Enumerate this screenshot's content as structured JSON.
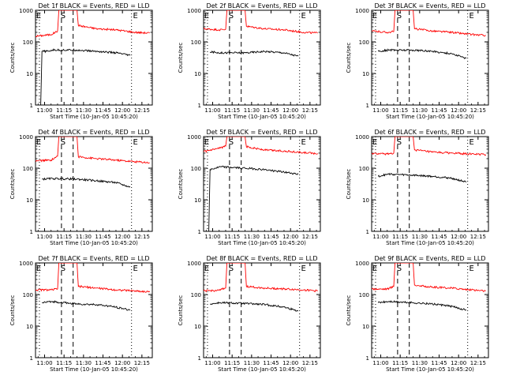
{
  "page": {
    "background": "#ffffff"
  },
  "colors": {
    "events": "#000000",
    "lld": "#ff0000",
    "axis": "#000000"
  },
  "shared": {
    "xlabel": "Start Time (10-Jan-05 10:45:20)",
    "ylabel": "Counts/sec",
    "x_tick_labels": [
      "11:00",
      "11:15",
      "11:30",
      "11:45",
      "12:00",
      "12:15"
    ],
    "y_tick_labels": [
      "1",
      "10",
      "100",
      "1000"
    ],
    "markers": {
      "eclipse_start": "E",
      "saa": "S",
      "eclipse_end": "E"
    }
  },
  "chart_data": [
    {
      "type": "line",
      "title": "Det 1f BLACK = Events, RED = LLD",
      "x_unit": "time of day (10-Jan-05)",
      "xlim": [
        "10:53",
        "12:23"
      ],
      "yscale": "log",
      "ylim": [
        1,
        1000
      ],
      "grid": false,
      "event_lines": {
        "eclipse_start": "10:56",
        "saa_start": "11:13",
        "saa_end": "11:22",
        "eclipse_end": "12:07"
      },
      "series": [
        {
          "name": "LLD",
          "color": "#ff0000",
          "points": [
            [
              "10:53",
              150
            ],
            [
              "11:05",
              170
            ],
            [
              "11:10",
              220
            ],
            [
              "11:11",
              1000
            ],
            [
              "11:25",
              1000
            ],
            [
              "11:26",
              330
            ],
            [
              "11:40",
              260
            ],
            [
              "11:55",
              240
            ],
            [
              "12:10",
              200
            ],
            [
              "12:21",
              190
            ]
          ]
        },
        {
          "name": "Events",
          "color": "#000000",
          "points": [
            [
              "10:57",
              1
            ],
            [
              "10:58",
              50
            ],
            [
              "11:03",
              50
            ],
            [
              "11:06",
              55
            ],
            [
              "11:25",
              55
            ],
            [
              "11:40",
              50
            ],
            [
              "11:55",
              45
            ],
            [
              "12:06",
              37
            ]
          ]
        }
      ]
    },
    {
      "type": "line",
      "title": "Det 2f BLACK = Events, RED = LLD",
      "x_unit": "time of day (10-Jan-05)",
      "xlim": [
        "10:53",
        "12:23"
      ],
      "yscale": "log",
      "ylim": [
        1,
        1000
      ],
      "grid": false,
      "event_lines": {
        "eclipse_start": "10:56",
        "saa_start": "11:13",
        "saa_end": "11:22",
        "eclipse_end": "12:07"
      },
      "series": [
        {
          "name": "LLD",
          "color": "#ff0000",
          "points": [
            [
              "10:53",
              260
            ],
            [
              "11:05",
              240
            ],
            [
              "11:10",
              250
            ],
            [
              "11:11",
              1000
            ],
            [
              "11:25",
              1000
            ],
            [
              "11:26",
              310
            ],
            [
              "11:40",
              260
            ],
            [
              "11:55",
              240
            ],
            [
              "12:10",
              200
            ],
            [
              "12:21",
              190
            ]
          ]
        },
        {
          "name": "Events",
          "color": "#000000",
          "points": [
            [
              "10:58",
              48
            ],
            [
              "11:06",
              45
            ],
            [
              "11:25",
              45
            ],
            [
              "11:40",
              50
            ],
            [
              "11:55",
              45
            ],
            [
              "12:06",
              35
            ]
          ]
        }
      ]
    },
    {
      "type": "line",
      "title": "Det 3f BLACK = Events, RED = LLD",
      "x_unit": "time of day (10-Jan-05)",
      "xlim": [
        "10:53",
        "12:23"
      ],
      "yscale": "log",
      "ylim": [
        1,
        1000
      ],
      "grid": false,
      "event_lines": {
        "eclipse_start": "10:56",
        "saa_start": "11:13",
        "saa_end": "11:22",
        "eclipse_end": "12:07"
      },
      "series": [
        {
          "name": "LLD",
          "color": "#ff0000",
          "points": [
            [
              "10:53",
              220
            ],
            [
              "11:05",
              200
            ],
            [
              "11:10",
              210
            ],
            [
              "11:11",
              1000
            ],
            [
              "11:25",
              1000
            ],
            [
              "11:26",
              260
            ],
            [
              "11:40",
              220
            ],
            [
              "11:55",
              200
            ],
            [
              "12:10",
              170
            ],
            [
              "12:21",
              160
            ]
          ]
        },
        {
          "name": "Events",
          "color": "#000000",
          "points": [
            [
              "10:58",
              50
            ],
            [
              "11:06",
              55
            ],
            [
              "11:25",
              55
            ],
            [
              "11:40",
              50
            ],
            [
              "11:55",
              42
            ],
            [
              "12:06",
              30
            ]
          ]
        }
      ]
    },
    {
      "type": "line",
      "title": "Det 4f BLACK = Events, RED = LLD",
      "x_unit": "time of day (10-Jan-05)",
      "xlim": [
        "10:53",
        "12:23"
      ],
      "yscale": "log",
      "ylim": [
        1,
        1000
      ],
      "grid": false,
      "event_lines": {
        "eclipse_start": "10:56",
        "saa_start": "11:13",
        "saa_end": "11:22",
        "eclipse_end": "12:07"
      },
      "series": [
        {
          "name": "LLD",
          "color": "#ff0000",
          "points": [
            [
              "10:53",
              170
            ],
            [
              "11:05",
              180
            ],
            [
              "11:10",
              240
            ],
            [
              "11:11",
              1000
            ],
            [
              "11:25",
              1000
            ],
            [
              "11:26",
              230
            ],
            [
              "11:40",
              200
            ],
            [
              "11:55",
              180
            ],
            [
              "12:10",
              160
            ],
            [
              "12:21",
              150
            ]
          ]
        },
        {
          "name": "Events",
          "color": "#000000",
          "points": [
            [
              "10:58",
              45
            ],
            [
              "11:06",
              47
            ],
            [
              "11:25",
              45
            ],
            [
              "11:40",
              40
            ],
            [
              "11:55",
              35
            ],
            [
              "12:06",
              25
            ]
          ]
        }
      ]
    },
    {
      "type": "line",
      "title": "Det 5f BLACK = Events, RED = LLD",
      "x_unit": "time of day (10-Jan-05)",
      "xlim": [
        "10:53",
        "12:23"
      ],
      "yscale": "log",
      "ylim": [
        1,
        1000
      ],
      "grid": false,
      "event_lines": {
        "eclipse_start": "10:56",
        "saa_start": "11:13",
        "saa_end": "11:22",
        "eclipse_end": "12:07"
      },
      "series": [
        {
          "name": "LLD",
          "color": "#ff0000",
          "points": [
            [
              "10:53",
              330
            ],
            [
              "11:05",
              420
            ],
            [
              "11:10",
              500
            ],
            [
              "11:11",
              1000
            ],
            [
              "11:25",
              1000
            ],
            [
              "11:26",
              480
            ],
            [
              "11:40",
              380
            ],
            [
              "11:55",
              350
            ],
            [
              "12:10",
              310
            ],
            [
              "12:21",
              290
            ]
          ]
        },
        {
          "name": "Events",
          "color": "#000000",
          "points": [
            [
              "10:57",
              1
            ],
            [
              "10:58",
              90
            ],
            [
              "11:06",
              110
            ],
            [
              "11:25",
              100
            ],
            [
              "11:40",
              90
            ],
            [
              "11:55",
              75
            ],
            [
              "12:06",
              65
            ]
          ]
        }
      ]
    },
    {
      "type": "line",
      "title": "Det 6f BLACK = Events, RED = LLD",
      "x_unit": "time of day (10-Jan-05)",
      "xlim": [
        "10:53",
        "12:23"
      ],
      "yscale": "log",
      "ylim": [
        1,
        1000
      ],
      "grid": false,
      "event_lines": {
        "eclipse_start": "10:56",
        "saa_start": "11:13",
        "saa_end": "11:22",
        "eclipse_end": "12:07"
      },
      "series": [
        {
          "name": "LLD",
          "color": "#ff0000",
          "points": [
            [
              "10:53",
              290
            ],
            [
              "11:05",
              280
            ],
            [
              "11:10",
              300
            ],
            [
              "11:11",
              1000
            ],
            [
              "11:25",
              1000
            ],
            [
              "11:26",
              380
            ],
            [
              "11:40",
              320
            ],
            [
              "11:55",
              300
            ],
            [
              "12:10",
              280
            ],
            [
              "12:21",
              270
            ]
          ]
        },
        {
          "name": "Events",
          "color": "#000000",
          "points": [
            [
              "10:58",
              55
            ],
            [
              "11:06",
              65
            ],
            [
              "11:25",
              60
            ],
            [
              "11:40",
              55
            ],
            [
              "11:55",
              48
            ],
            [
              "12:06",
              36
            ]
          ]
        }
      ]
    },
    {
      "type": "line",
      "title": "Det 7f BLACK = Events, RED = LLD",
      "x_unit": "time of day (10-Jan-05)",
      "xlim": [
        "10:53",
        "12:23"
      ],
      "yscale": "log",
      "ylim": [
        1,
        1000
      ],
      "grid": false,
      "event_lines": {
        "eclipse_start": "10:56",
        "saa_start": "11:13",
        "saa_end": "11:22",
        "eclipse_end": "12:07"
      },
      "series": [
        {
          "name": "LLD",
          "color": "#ff0000",
          "points": [
            [
              "10:53",
              140
            ],
            [
              "11:05",
              140
            ],
            [
              "11:10",
              150
            ],
            [
              "11:11",
              1000
            ],
            [
              "11:25",
              1000
            ],
            [
              "11:26",
              180
            ],
            [
              "11:40",
              160
            ],
            [
              "11:55",
              140
            ],
            [
              "12:10",
              130
            ],
            [
              "12:21",
              120
            ]
          ]
        },
        {
          "name": "Events",
          "color": "#000000",
          "points": [
            [
              "10:58",
              55
            ],
            [
              "11:06",
              60
            ],
            [
              "11:25",
              50
            ],
            [
              "11:40",
              48
            ],
            [
              "11:55",
              40
            ],
            [
              "12:06",
              32
            ]
          ]
        }
      ]
    },
    {
      "type": "line",
      "title": "Det 8f BLACK = Events, RED = LLD",
      "x_unit": "time of day (10-Jan-05)",
      "xlim": [
        "10:53",
        "12:23"
      ],
      "yscale": "log",
      "ylim": [
        1,
        1000
      ],
      "grid": false,
      "event_lines": {
        "eclipse_start": "10:56",
        "saa_start": "11:13",
        "saa_end": "11:22",
        "eclipse_end": "12:07"
      },
      "series": [
        {
          "name": "LLD",
          "color": "#ff0000",
          "points": [
            [
              "10:53",
              130
            ],
            [
              "11:05",
              135
            ],
            [
              "11:10",
              160
            ],
            [
              "11:11",
              1000
            ],
            [
              "11:25",
              1000
            ],
            [
              "11:26",
              180
            ],
            [
              "11:40",
              160
            ],
            [
              "11:55",
              150
            ],
            [
              "12:10",
              140
            ],
            [
              "12:21",
              130
            ]
          ]
        },
        {
          "name": "Events",
          "color": "#000000",
          "points": [
            [
              "10:58",
              50
            ],
            [
              "11:06",
              55
            ],
            [
              "11:25",
              52
            ],
            [
              "11:40",
              48
            ],
            [
              "11:55",
              40
            ],
            [
              "12:06",
              30
            ]
          ]
        }
      ]
    },
    {
      "type": "line",
      "title": "Det 9f BLACK = Events, RED = LLD",
      "x_unit": "time of day (10-Jan-05)",
      "xlim": [
        "10:53",
        "12:23"
      ],
      "yscale": "log",
      "ylim": [
        1,
        1000
      ],
      "grid": false,
      "event_lines": {
        "eclipse_start": "10:56",
        "saa_start": "11:13",
        "saa_end": "11:22",
        "eclipse_end": "12:07"
      },
      "series": [
        {
          "name": "LLD",
          "color": "#ff0000",
          "points": [
            [
              "10:53",
              150
            ],
            [
              "11:05",
              150
            ],
            [
              "11:10",
              180
            ],
            [
              "11:11",
              1000
            ],
            [
              "11:25",
              1000
            ],
            [
              "11:26",
              200
            ],
            [
              "11:40",
              170
            ],
            [
              "11:55",
              160
            ],
            [
              "12:10",
              140
            ],
            [
              "12:21",
              130
            ]
          ]
        },
        {
          "name": "Events",
          "color": "#000000",
          "points": [
            [
              "10:58",
              55
            ],
            [
              "11:06",
              60
            ],
            [
              "11:25",
              55
            ],
            [
              "11:40",
              50
            ],
            [
              "11:55",
              42
            ],
            [
              "12:06",
              32
            ]
          ]
        }
      ]
    }
  ]
}
